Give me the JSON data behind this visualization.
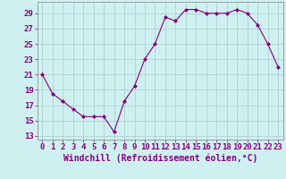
{
  "x": [
    0,
    1,
    2,
    3,
    4,
    5,
    6,
    7,
    8,
    9,
    10,
    11,
    12,
    13,
    14,
    15,
    16,
    17,
    18,
    19,
    20,
    21,
    22,
    23
  ],
  "y": [
    21,
    18.5,
    17.5,
    16.5,
    15.5,
    15.5,
    15.5,
    13.5,
    17.5,
    19.5,
    23,
    25,
    28.5,
    28,
    29.5,
    29.5,
    29,
    29,
    29,
    29.5,
    29,
    27.5,
    25,
    22
  ],
  "line_color": "#800080",
  "marker": "D",
  "marker_size": 2.0,
  "bg_color": "#cff0f0",
  "grid_color": "#aacccc",
  "xlabel": "Windchill (Refroidissement éolien,°C)",
  "xlabel_color": "#800080",
  "xlabel_fontsize": 7,
  "yticks": [
    13,
    15,
    17,
    19,
    21,
    23,
    25,
    27,
    29
  ],
  "xticks": [
    0,
    1,
    2,
    3,
    4,
    5,
    6,
    7,
    8,
    9,
    10,
    11,
    12,
    13,
    14,
    15,
    16,
    17,
    18,
    19,
    20,
    21,
    22,
    23
  ],
  "ylim": [
    12.5,
    30.5
  ],
  "xlim": [
    -0.5,
    23.5
  ],
  "tick_fontsize": 6.5,
  "tick_color": "#800080",
  "line_width": 0.8,
  "spine_color": "#808080"
}
